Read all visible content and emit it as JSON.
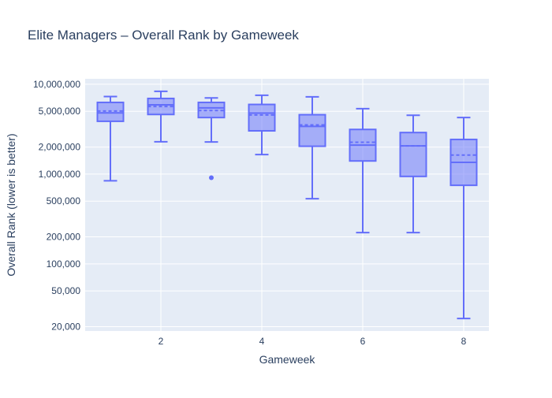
{
  "chart_data": {
    "type": "box",
    "title": "Elite Managers – Overall Rank by Gameweek",
    "xlabel": "Gameweek",
    "ylabel": "Overall Rank (lower is better)",
    "y_scale": "log",
    "ylim": [
      17900,
      11500000
    ],
    "xlim": [
      0.5,
      8.5
    ],
    "x_tick_labels": [
      "2",
      "4",
      "6",
      "8"
    ],
    "x_ticks": [
      2,
      4,
      6,
      8
    ],
    "y_ticks": [
      10000000,
      5000000,
      2000000,
      1000000,
      500000,
      200000,
      100000,
      50000,
      20000
    ],
    "y_tick_labels": [
      "10,000,000",
      "5,000,000",
      "2,000,000",
      "1,000,000",
      "500,000",
      "200,000",
      "100,000",
      "50,000",
      "20,000"
    ],
    "grid": true,
    "colors": {
      "box": "#636efa",
      "plot_bg": "#e5ecf6",
      "text": "#2a3f5f"
    },
    "boxes": [
      {
        "x": 1,
        "lower_fence": 842000,
        "q1": 3870000,
        "median": 4800000,
        "mean": 5040000,
        "q3": 6280000,
        "upper_fence": 7300000,
        "outliers": []
      },
      {
        "x": 2,
        "lower_fence": 2290000,
        "q1": 4610000,
        "median": 5910000,
        "mean": 5650000,
        "q3": 6950000,
        "upper_fence": 8340000,
        "outliers": []
      },
      {
        "x": 3,
        "lower_fence": 2280000,
        "q1": 4260000,
        "median": 5460000,
        "mean": 5100000,
        "q3": 6280000,
        "upper_fence": 7050000,
        "outliers": [
          912000
        ]
      },
      {
        "x": 4,
        "lower_fence": 1650000,
        "q1": 3030000,
        "median": 4770000,
        "mean": 4550000,
        "q3": 5960000,
        "upper_fence": 7540000,
        "outliers": []
      },
      {
        "x": 5,
        "lower_fence": 532000,
        "q1": 2040000,
        "median": 3400000,
        "mean": 3530000,
        "q3": 4580000,
        "upper_fence": 7240000,
        "outliers": []
      },
      {
        "x": 6,
        "lower_fence": 223000,
        "q1": 1400000,
        "median": 2100000,
        "mean": 2260000,
        "q3": 3140000,
        "upper_fence": 5350000,
        "outliers": []
      },
      {
        "x": 7,
        "lower_fence": 223000,
        "q1": 942000,
        "median": 2060000,
        "mean": 2060000,
        "q3": 2900000,
        "upper_fence": 4520000,
        "outliers": []
      },
      {
        "x": 8,
        "lower_fence": 24700,
        "q1": 750000,
        "median": 1350000,
        "mean": 1630000,
        "q3": 2430000,
        "upper_fence": 4260000,
        "outliers": []
      }
    ]
  }
}
